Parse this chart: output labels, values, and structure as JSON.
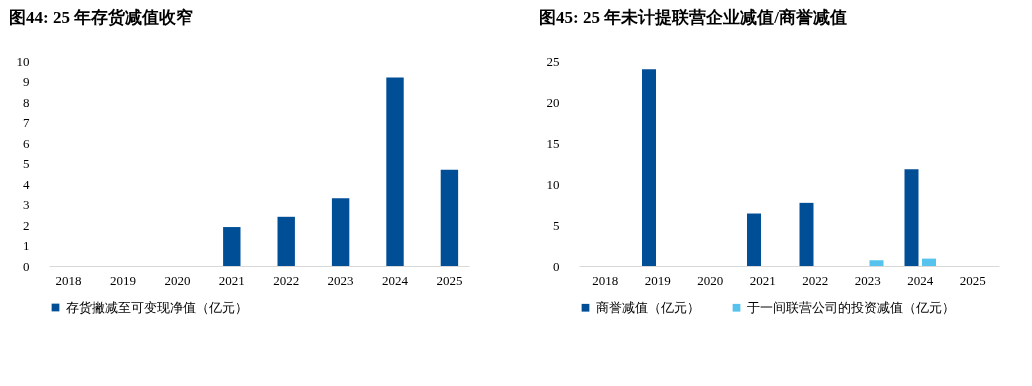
{
  "chart_data": [
    {
      "type": "bar",
      "title": "图44:  25 年存货减值收窄",
      "categories": [
        "2018",
        "2019",
        "2020",
        "2021",
        "2022",
        "2023",
        "2024",
        "2025"
      ],
      "series": [
        {
          "name": "存货撇减至可变现净值（亿元）",
          "color": "#004e96",
          "values": [
            null,
            null,
            null,
            1.9,
            2.4,
            3.3,
            9.2,
            4.7
          ]
        }
      ],
      "ylim": [
        0,
        10
      ],
      "yticks": [
        0,
        1,
        2,
        3,
        4,
        5,
        6,
        7,
        8,
        9,
        10
      ],
      "grid": false,
      "legend": "bottom"
    },
    {
      "type": "bar",
      "title": "图45:  25 年未计提联营企业减值/商誉减值",
      "categories": [
        "2018",
        "2019",
        "2020",
        "2021",
        "2022",
        "2023",
        "2024",
        "2025"
      ],
      "series": [
        {
          "name": "商誉减值（亿元）",
          "color": "#004e96",
          "values": [
            null,
            24.0,
            null,
            6.4,
            7.7,
            null,
            11.8,
            null
          ]
        },
        {
          "name": "于一间联营公司的投资减值（亿元）",
          "color": "#56c2ee",
          "values": [
            null,
            null,
            null,
            null,
            null,
            0.7,
            0.9,
            null
          ]
        }
      ],
      "ylim": [
        0,
        25
      ],
      "yticks": [
        0,
        5,
        10,
        15,
        20,
        25
      ],
      "grid": false,
      "legend": "bottom"
    }
  ]
}
